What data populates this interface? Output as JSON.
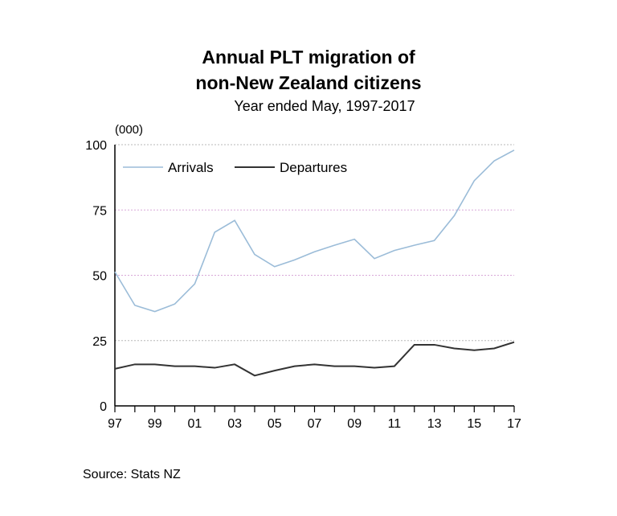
{
  "chart_data": {
    "type": "line",
    "title": "Annual PLT migration of non-New Zealand citizens",
    "title_lines": [
      "Annual PLT migration of",
      "non-New Zealand citizens"
    ],
    "subtitle": "Year ended May, 1997-2017",
    "unit_label": "(000)",
    "source": "Source: Stats NZ",
    "x": [
      1997,
      1998,
      1999,
      2000,
      2001,
      2002,
      2003,
      2004,
      2005,
      2006,
      2007,
      2008,
      2009,
      2010,
      2011,
      2012,
      2013,
      2014,
      2015,
      2016,
      2017
    ],
    "x_tick_labels": [
      "97",
      "99",
      "01",
      "03",
      "05",
      "07",
      "09",
      "11",
      "13",
      "15",
      "17"
    ],
    "y_ticks": [
      0,
      25,
      50,
      75,
      100
    ],
    "ylim": [
      0,
      100
    ],
    "grid": true,
    "legend_placement": "top-left",
    "series": [
      {
        "name": "Arrivals",
        "color": "#9bbcd8",
        "values": [
          51.3,
          38.5,
          36.1,
          39,
          46.7,
          66.5,
          71,
          58,
          53.3,
          55.9,
          59,
          61.5,
          63.8,
          56.4,
          59.5,
          61.5,
          63.3,
          72.8,
          86.2,
          93.8,
          97.9
        ]
      },
      {
        "name": "Departures",
        "color": "#333333",
        "values": [
          14.2,
          15.9,
          15.9,
          15.2,
          15.2,
          14.6,
          15.9,
          11.6,
          13.5,
          15.2,
          15.9,
          15.2,
          15.2,
          14.6,
          15.2,
          23.4,
          23.4,
          22,
          21.3,
          22,
          24.4
        ]
      }
    ]
  }
}
